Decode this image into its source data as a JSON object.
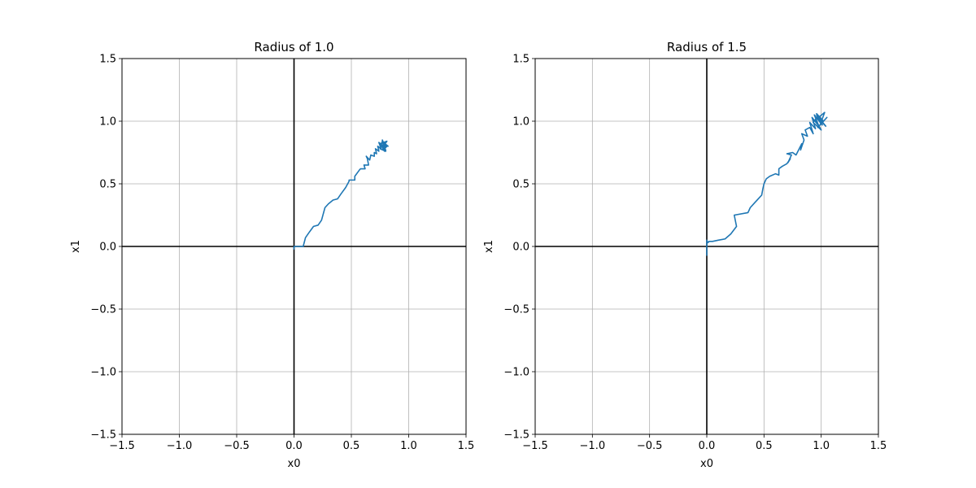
{
  "chart_data": [
    {
      "type": "line",
      "title": "Radius of 1.0",
      "xlabel": "x0",
      "ylabel": "x1",
      "xlim": [
        -1.5,
        1.5
      ],
      "ylim": [
        -1.5,
        1.5
      ],
      "xticks": [
        -1.5,
        -1.0,
        -0.5,
        0.0,
        0.5,
        1.0,
        1.5
      ],
      "yticks": [
        -1.5,
        -1.0,
        -0.5,
        0.0,
        0.5,
        1.0,
        1.5
      ],
      "xtick_labels": [
        "−1.5",
        "−1.0",
        "−0.5",
        "0.0",
        "0.5",
        "1.0",
        "1.5"
      ],
      "ytick_labels": [
        "−1.5",
        "−1.0",
        "−0.5",
        "0.0",
        "0.5",
        "1.0",
        "1.5"
      ],
      "grid": true,
      "color": "#1f77b4",
      "series": [
        {
          "x": [
            0.0,
            0.0,
            0.02,
            0.08,
            0.1,
            0.13,
            0.17,
            0.21,
            0.24,
            0.27,
            0.3,
            0.34,
            0.38,
            0.41,
            0.45,
            0.48,
            0.48,
            0.53,
            0.53,
            0.57,
            0.58,
            0.62,
            0.61,
            0.65,
            0.64,
            0.63,
            0.66,
            0.67,
            0.7,
            0.7,
            0.72,
            0.71,
            0.74,
            0.73,
            0.76,
            0.74,
            0.78,
            0.77,
            0.8,
            0.79,
            0.78,
            0.81,
            0.77,
            0.75,
            0.8,
            0.78,
            0.82,
            0.76,
            0.79,
            0.75,
            0.81,
            0.77,
            0.8,
            0.76,
            0.78
          ],
          "y": [
            -0.02,
            0.0,
            0.0,
            0.0,
            0.07,
            0.11,
            0.16,
            0.17,
            0.21,
            0.31,
            0.34,
            0.37,
            0.38,
            0.42,
            0.47,
            0.52,
            0.53,
            0.53,
            0.56,
            0.61,
            0.62,
            0.62,
            0.65,
            0.65,
            0.7,
            0.72,
            0.69,
            0.73,
            0.72,
            0.75,
            0.74,
            0.78,
            0.76,
            0.8,
            0.78,
            0.83,
            0.8,
            0.85,
            0.79,
            0.82,
            0.77,
            0.8,
            0.84,
            0.78,
            0.76,
            0.83,
            0.8,
            0.81,
            0.76,
            0.82,
            0.84,
            0.79,
            0.77,
            0.81,
            0.8
          ]
        }
      ]
    },
    {
      "type": "line",
      "title": "Radius of 1.5",
      "xlabel": "x0",
      "ylabel": "x1",
      "xlim": [
        -1.5,
        1.5
      ],
      "ylim": [
        -1.5,
        1.5
      ],
      "xticks": [
        -1.5,
        -1.0,
        -0.5,
        0.0,
        0.5,
        1.0,
        1.5
      ],
      "yticks": [
        -1.5,
        -1.0,
        -0.5,
        0.0,
        0.5,
        1.0,
        1.5
      ],
      "xtick_labels": [
        "−1.5",
        "−1.0",
        "−0.5",
        "0.0",
        "0.5",
        "1.0",
        "1.5"
      ],
      "ytick_labels": [
        "−1.5",
        "−1.0",
        "−0.5",
        "0.0",
        "0.5",
        "1.0",
        "1.5"
      ],
      "grid": true,
      "color": "#1f77b4",
      "series": [
        {
          "x": [
            0.0,
            0.0,
            0.01,
            0.02,
            0.05,
            0.1,
            0.16,
            0.21,
            0.26,
            0.24,
            0.36,
            0.38,
            0.42,
            0.46,
            0.48,
            0.49,
            0.5,
            0.52,
            0.55,
            0.6,
            0.63,
            0.63,
            0.66,
            0.7,
            0.73,
            0.71,
            0.74,
            0.7,
            0.75,
            0.78,
            0.83,
            0.82,
            0.85,
            0.83,
            0.88,
            0.86,
            0.9,
            0.93,
            0.9,
            0.95,
            0.92,
            0.98,
            0.94,
            1.0,
            0.96,
            1.02,
            0.97,
            1.05,
            0.99,
            1.03,
            0.95,
            1.0,
            0.93,
            0.97,
            1.04,
            0.98,
            1.01,
            0.96,
            1.0
          ],
          "y": [
            -0.07,
            0.05,
            0.03,
            0.04,
            0.04,
            0.05,
            0.06,
            0.1,
            0.16,
            0.25,
            0.27,
            0.31,
            0.35,
            0.39,
            0.41,
            0.46,
            0.5,
            0.54,
            0.56,
            0.58,
            0.57,
            0.62,
            0.64,
            0.66,
            0.7,
            0.67,
            0.73,
            0.74,
            0.75,
            0.73,
            0.82,
            0.77,
            0.85,
            0.9,
            0.88,
            0.93,
            0.95,
            0.9,
            0.99,
            0.94,
            1.03,
            0.96,
            1.05,
            0.98,
            1.06,
            1.0,
            0.95,
            1.03,
            0.97,
            1.07,
            1.01,
            0.93,
            0.99,
            1.04,
            0.96,
            1.02,
            0.97,
            1.05,
            1.0
          ]
        }
      ]
    }
  ]
}
